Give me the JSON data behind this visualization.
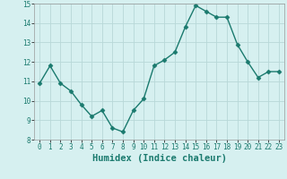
{
  "x": [
    0,
    1,
    2,
    3,
    4,
    5,
    6,
    7,
    8,
    9,
    10,
    11,
    12,
    13,
    14,
    15,
    16,
    17,
    18,
    19,
    20,
    21,
    22,
    23
  ],
  "y": [
    10.9,
    11.8,
    10.9,
    10.5,
    9.8,
    9.2,
    9.5,
    8.6,
    8.4,
    9.5,
    10.1,
    11.8,
    12.1,
    12.5,
    13.8,
    14.9,
    14.6,
    14.3,
    14.3,
    12.9,
    12.0,
    11.2,
    11.5,
    11.5
  ],
  "line_color": "#1a7a6e",
  "marker": "D",
  "marker_size": 2.5,
  "bg_color": "#d6f0f0",
  "grid_color": "#b8d8d8",
  "xlabel": "Humidex (Indice chaleur)",
  "ylim": [
    8,
    15
  ],
  "xlim": [
    -0.5,
    23.5
  ],
  "yticks": [
    8,
    9,
    10,
    11,
    12,
    13,
    14,
    15
  ],
  "xticks": [
    0,
    1,
    2,
    3,
    4,
    5,
    6,
    7,
    8,
    9,
    10,
    11,
    12,
    13,
    14,
    15,
    16,
    17,
    18,
    19,
    20,
    21,
    22,
    23
  ],
  "tick_fontsize": 5.5,
  "xlabel_fontsize": 7.5,
  "line_width": 1.0
}
